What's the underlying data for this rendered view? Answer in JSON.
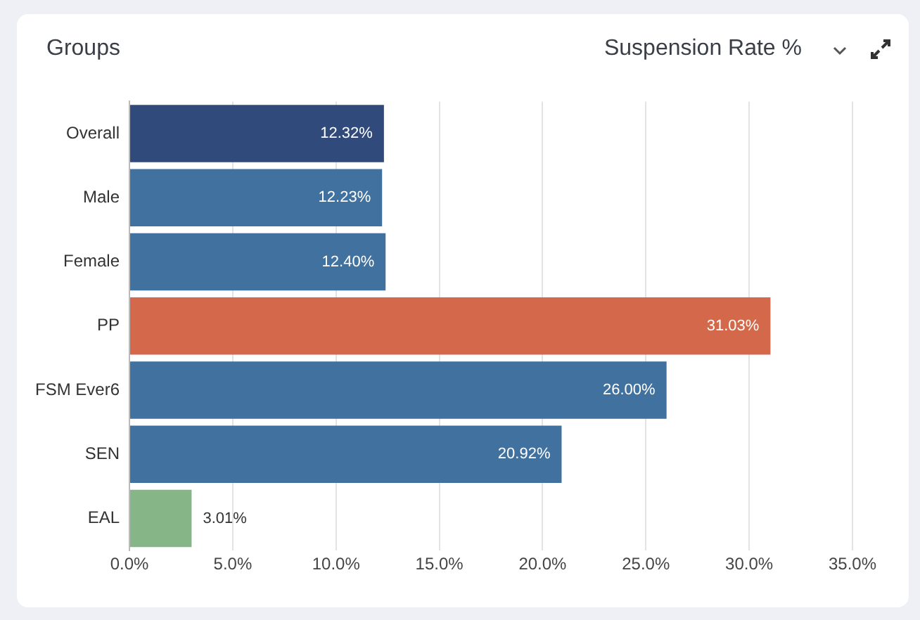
{
  "chart_data": {
    "type": "bar",
    "orientation": "horizontal",
    "title": "Groups",
    "subtitle": "Suspension Rate %",
    "categories": [
      "Overall",
      "Male",
      "Female",
      "PP",
      "FSM Ever6",
      "SEN",
      "EAL"
    ],
    "values": [
      12.32,
      12.23,
      12.4,
      31.03,
      26.0,
      20.92,
      3.01
    ],
    "colors": [
      "#2f4a7b",
      "#41719f",
      "#41719f",
      "#d3694a",
      "#41719f",
      "#41719f",
      "#86b587"
    ],
    "value_labels": [
      "12.32%",
      "12.23%",
      "12.40%",
      "31.03%",
      "26.00%",
      "20.92%",
      "3.01%"
    ],
    "xlim": [
      0,
      35
    ],
    "xticks": [
      {
        "value": 0,
        "label": "0.0%"
      },
      {
        "value": 5,
        "label": "5.0%"
      },
      {
        "value": 10,
        "label": "10.0%"
      },
      {
        "value": 15,
        "label": "15.0%"
      },
      {
        "value": 20,
        "label": "20.0%"
      },
      {
        "value": 25,
        "label": "25.0%"
      },
      {
        "value": 30,
        "label": "30.0%"
      },
      {
        "value": 35,
        "label": "35.0%"
      }
    ],
    "grid": "x",
    "legend": false
  }
}
